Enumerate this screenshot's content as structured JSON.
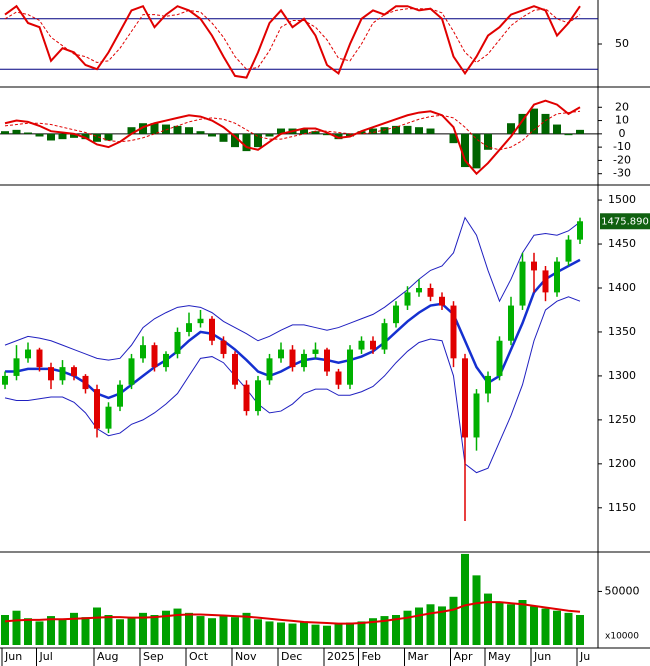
{
  "chart_data": [
    {
      "type": "line",
      "ylim": [
        0,
        100
      ],
      "yticks": [
        50
      ],
      "levels": [
        80,
        20
      ],
      "series": [
        {
          "name": "K",
          "color": "#e00000",
          "dash": false,
          "values": [
            85,
            95,
            75,
            70,
            30,
            45,
            40,
            25,
            20,
            40,
            65,
            90,
            95,
            70,
            85,
            95,
            90,
            80,
            60,
            35,
            12,
            10,
            40,
            75,
            90,
            70,
            80,
            60,
            25,
            15,
            50,
            80,
            90,
            85,
            95,
            95,
            90,
            92,
            80,
            35,
            15,
            35,
            60,
            70,
            85,
            90,
            95,
            90,
            60,
            75,
            95
          ]
        },
        {
          "name": "D",
          "color": "#e00000",
          "dash": true,
          "values": [
            80,
            88,
            85,
            78,
            58,
            48,
            38,
            35,
            28,
            30,
            45,
            65,
            85,
            85,
            83,
            85,
            90,
            88,
            75,
            58,
            35,
            20,
            22,
            42,
            70,
            78,
            78,
            70,
            55,
            33,
            30,
            50,
            75,
            85,
            90,
            92,
            92,
            92,
            87,
            65,
            40,
            28,
            38,
            55,
            72,
            82,
            90,
            92,
            80,
            75,
            85
          ]
        }
      ]
    },
    {
      "type": "macd",
      "ylim": [
        -37,
        33
      ],
      "yticks": [
        20,
        10,
        0,
        -10,
        -20,
        -30
      ],
      "series": [
        {
          "name": "Histogram",
          "kind": "bar",
          "color": "#006400",
          "values": [
            2,
            3,
            1,
            -2,
            -5,
            -4,
            -3,
            -4,
            -6,
            -5,
            0,
            5,
            8,
            8,
            7,
            6,
            5,
            2,
            -2,
            -6,
            -10,
            -13,
            -10,
            -2,
            4,
            4,
            4,
            2,
            -1,
            -4,
            -2,
            2,
            4,
            5,
            6,
            6,
            5,
            4,
            0,
            -7,
            -25,
            -26,
            -12,
            0,
            8,
            15,
            19,
            15,
            7,
            -1,
            3
          ]
        },
        {
          "name": "MACD",
          "kind": "line",
          "color": "#e00000",
          "dash": false,
          "values": [
            8,
            10,
            9,
            6,
            2,
            1,
            0,
            -3,
            -8,
            -10,
            -6,
            0,
            5,
            8,
            10,
            12,
            14,
            13,
            10,
            5,
            -2,
            -10,
            -12,
            -6,
            0,
            2,
            4,
            4,
            1,
            -3,
            -2,
            2,
            5,
            8,
            11,
            14,
            16,
            17,
            14,
            5,
            -20,
            -30,
            -22,
            -12,
            -2,
            10,
            22,
            25,
            22,
            15,
            20
          ]
        },
        {
          "name": "Signal",
          "kind": "line",
          "color": "#e00000",
          "dash": true,
          "values": [
            6,
            7,
            8,
            8,
            7,
            5,
            3,
            1,
            -2,
            -5,
            -6,
            -5,
            -3,
            0,
            3,
            6,
            9,
            11,
            12,
            11,
            8,
            3,
            -2,
            -4,
            -4,
            -2,
            0,
            2,
            2,
            1,
            0,
            0,
            1,
            3,
            5,
            8,
            11,
            13,
            14,
            12,
            5,
            -4,
            -10,
            -12,
            -10,
            -5,
            3,
            10,
            15,
            16,
            17
          ]
        }
      ]
    },
    {
      "type": "candlestick",
      "ylim": [
        1102,
        1516
      ],
      "yticks": [
        1500,
        1450,
        1400,
        1350,
        1300,
        1250,
        1200,
        1150
      ],
      "last_label": "1475.890",
      "up_color": "#00b000",
      "down_color": "#e00000",
      "categories": [
        "Jun",
        null,
        null,
        "Jul",
        null,
        null,
        null,
        null,
        "Aug",
        null,
        null,
        null,
        "Sep",
        null,
        null,
        null,
        "Oct",
        null,
        null,
        null,
        "Nov",
        null,
        null,
        null,
        "Dec",
        null,
        null,
        null,
        "2025",
        null,
        null,
        "Feb",
        null,
        null,
        null,
        "Mar",
        null,
        null,
        null,
        "Apr",
        null,
        null,
        "May",
        null,
        null,
        null,
        "Jun",
        null,
        null,
        null,
        "Ju"
      ],
      "open": [
        1290,
        1300,
        1320,
        1330,
        1310,
        1295,
        1310,
        1300,
        1285,
        1240,
        1265,
        1290,
        1320,
        1335,
        1310,
        1325,
        1350,
        1360,
        1365,
        1340,
        1325,
        1290,
        1260,
        1295,
        1320,
        1330,
        1310,
        1325,
        1330,
        1305,
        1290,
        1330,
        1340,
        1330,
        1360,
        1380,
        1395,
        1400,
        1390,
        1380,
        1320,
        1230,
        1280,
        1300,
        1340,
        1380,
        1430,
        1420,
        1395,
        1430,
        1455
      ],
      "high": [
        1305,
        1335,
        1338,
        1332,
        1315,
        1318,
        1312,
        1302,
        1290,
        1270,
        1295,
        1325,
        1345,
        1338,
        1328,
        1355,
        1372,
        1375,
        1368,
        1345,
        1328,
        1295,
        1300,
        1325,
        1338,
        1335,
        1330,
        1338,
        1332,
        1308,
        1335,
        1345,
        1345,
        1365,
        1385,
        1402,
        1410,
        1405,
        1395,
        1385,
        1325,
        1285,
        1305,
        1345,
        1390,
        1440,
        1440,
        1425,
        1435,
        1460,
        1480
      ],
      "low": [
        1285,
        1295,
        1315,
        1305,
        1285,
        1290,
        1295,
        1280,
        1230,
        1235,
        1260,
        1285,
        1315,
        1305,
        1305,
        1320,
        1345,
        1355,
        1335,
        1320,
        1285,
        1255,
        1255,
        1290,
        1315,
        1305,
        1305,
        1320,
        1300,
        1285,
        1285,
        1325,
        1325,
        1325,
        1355,
        1375,
        1390,
        1385,
        1375,
        1310,
        1135,
        1215,
        1270,
        1295,
        1335,
        1375,
        1395,
        1385,
        1390,
        1425,
        1450
      ],
      "close": [
        1300,
        1320,
        1330,
        1310,
        1295,
        1310,
        1300,
        1285,
        1240,
        1265,
        1290,
        1320,
        1335,
        1310,
        1325,
        1350,
        1360,
        1365,
        1340,
        1325,
        1290,
        1260,
        1295,
        1320,
        1330,
        1310,
        1325,
        1330,
        1305,
        1290,
        1330,
        1340,
        1330,
        1360,
        1380,
        1395,
        1400,
        1390,
        1380,
        1320,
        1230,
        1280,
        1300,
        1340,
        1380,
        1430,
        1420,
        1395,
        1430,
        1455,
        1475.89
      ],
      "series": [
        {
          "name": "Upper",
          "color": "#2020c0",
          "width": 1,
          "values": [
            1335,
            1340,
            1345,
            1343,
            1340,
            1335,
            1330,
            1325,
            1320,
            1318,
            1320,
            1335,
            1355,
            1365,
            1372,
            1378,
            1380,
            1378,
            1372,
            1362,
            1355,
            1348,
            1340,
            1345,
            1352,
            1358,
            1358,
            1355,
            1352,
            1355,
            1360,
            1365,
            1370,
            1378,
            1388,
            1398,
            1410,
            1420,
            1425,
            1440,
            1480,
            1460,
            1420,
            1385,
            1410,
            1440,
            1460,
            1462,
            1460,
            1465,
            1475
          ]
        },
        {
          "name": "MA",
          "color": "#1530d0",
          "width": 2.5,
          "values": [
            1305,
            1305,
            1308,
            1308,
            1308,
            1305,
            1300,
            1292,
            1280,
            1275,
            1280,
            1290,
            1300,
            1310,
            1318,
            1328,
            1340,
            1350,
            1348,
            1340,
            1330,
            1318,
            1305,
            1300,
            1305,
            1312,
            1318,
            1320,
            1318,
            1315,
            1318,
            1322,
            1328,
            1338,
            1350,
            1362,
            1372,
            1380,
            1382,
            1370,
            1340,
            1310,
            1292,
            1300,
            1330,
            1360,
            1395,
            1410,
            1418,
            1425,
            1432
          ]
        },
        {
          "name": "Lower",
          "color": "#2020c0",
          "width": 1,
          "values": [
            1275,
            1272,
            1272,
            1274,
            1276,
            1276,
            1270,
            1258,
            1240,
            1232,
            1235,
            1245,
            1250,
            1258,
            1268,
            1280,
            1300,
            1320,
            1322,
            1315,
            1300,
            1285,
            1268,
            1258,
            1260,
            1268,
            1280,
            1285,
            1285,
            1278,
            1278,
            1282,
            1288,
            1300,
            1315,
            1328,
            1338,
            1342,
            1340,
            1300,
            1200,
            1190,
            1195,
            1225,
            1255,
            1290,
            1340,
            1375,
            1385,
            1390,
            1385
          ]
        }
      ]
    },
    {
      "type": "bar",
      "ylim": [
        0,
        84000
      ],
      "yticks": [
        50000
      ],
      "unit": "x10000",
      "color": "#00a000",
      "values": [
        28000,
        32000,
        25000,
        22000,
        27000,
        24000,
        30000,
        26000,
        35000,
        28000,
        24000,
        26000,
        30000,
        28000,
        32000,
        34000,
        30000,
        27000,
        25000,
        28000,
        26000,
        30000,
        24000,
        22000,
        21000,
        20000,
        22000,
        19000,
        18000,
        20000,
        21000,
        22000,
        25000,
        27000,
        28000,
        32000,
        35000,
        38000,
        36000,
        45000,
        85000,
        65000,
        48000,
        40000,
        38000,
        42000,
        36000,
        34000,
        32000,
        30000,
        28000
      ],
      "series": [
        {
          "name": "Volume MA",
          "color": "#e00000",
          "width": 2,
          "values": [
            22000,
            23000,
            23500,
            23500,
            24000,
            24000,
            24500,
            25000,
            25500,
            26000,
            26000,
            25500,
            25500,
            26000,
            27000,
            28000,
            28500,
            28500,
            28000,
            27500,
            27000,
            26500,
            25500,
            24500,
            23500,
            22500,
            21500,
            21000,
            20500,
            20000,
            20000,
            20500,
            21500,
            22500,
            24000,
            25500,
            27500,
            29500,
            31000,
            33000,
            37000,
            39000,
            40000,
            40000,
            39000,
            38000,
            36500,
            35000,
            33500,
            32000,
            31000
          ]
        }
      ]
    }
  ]
}
